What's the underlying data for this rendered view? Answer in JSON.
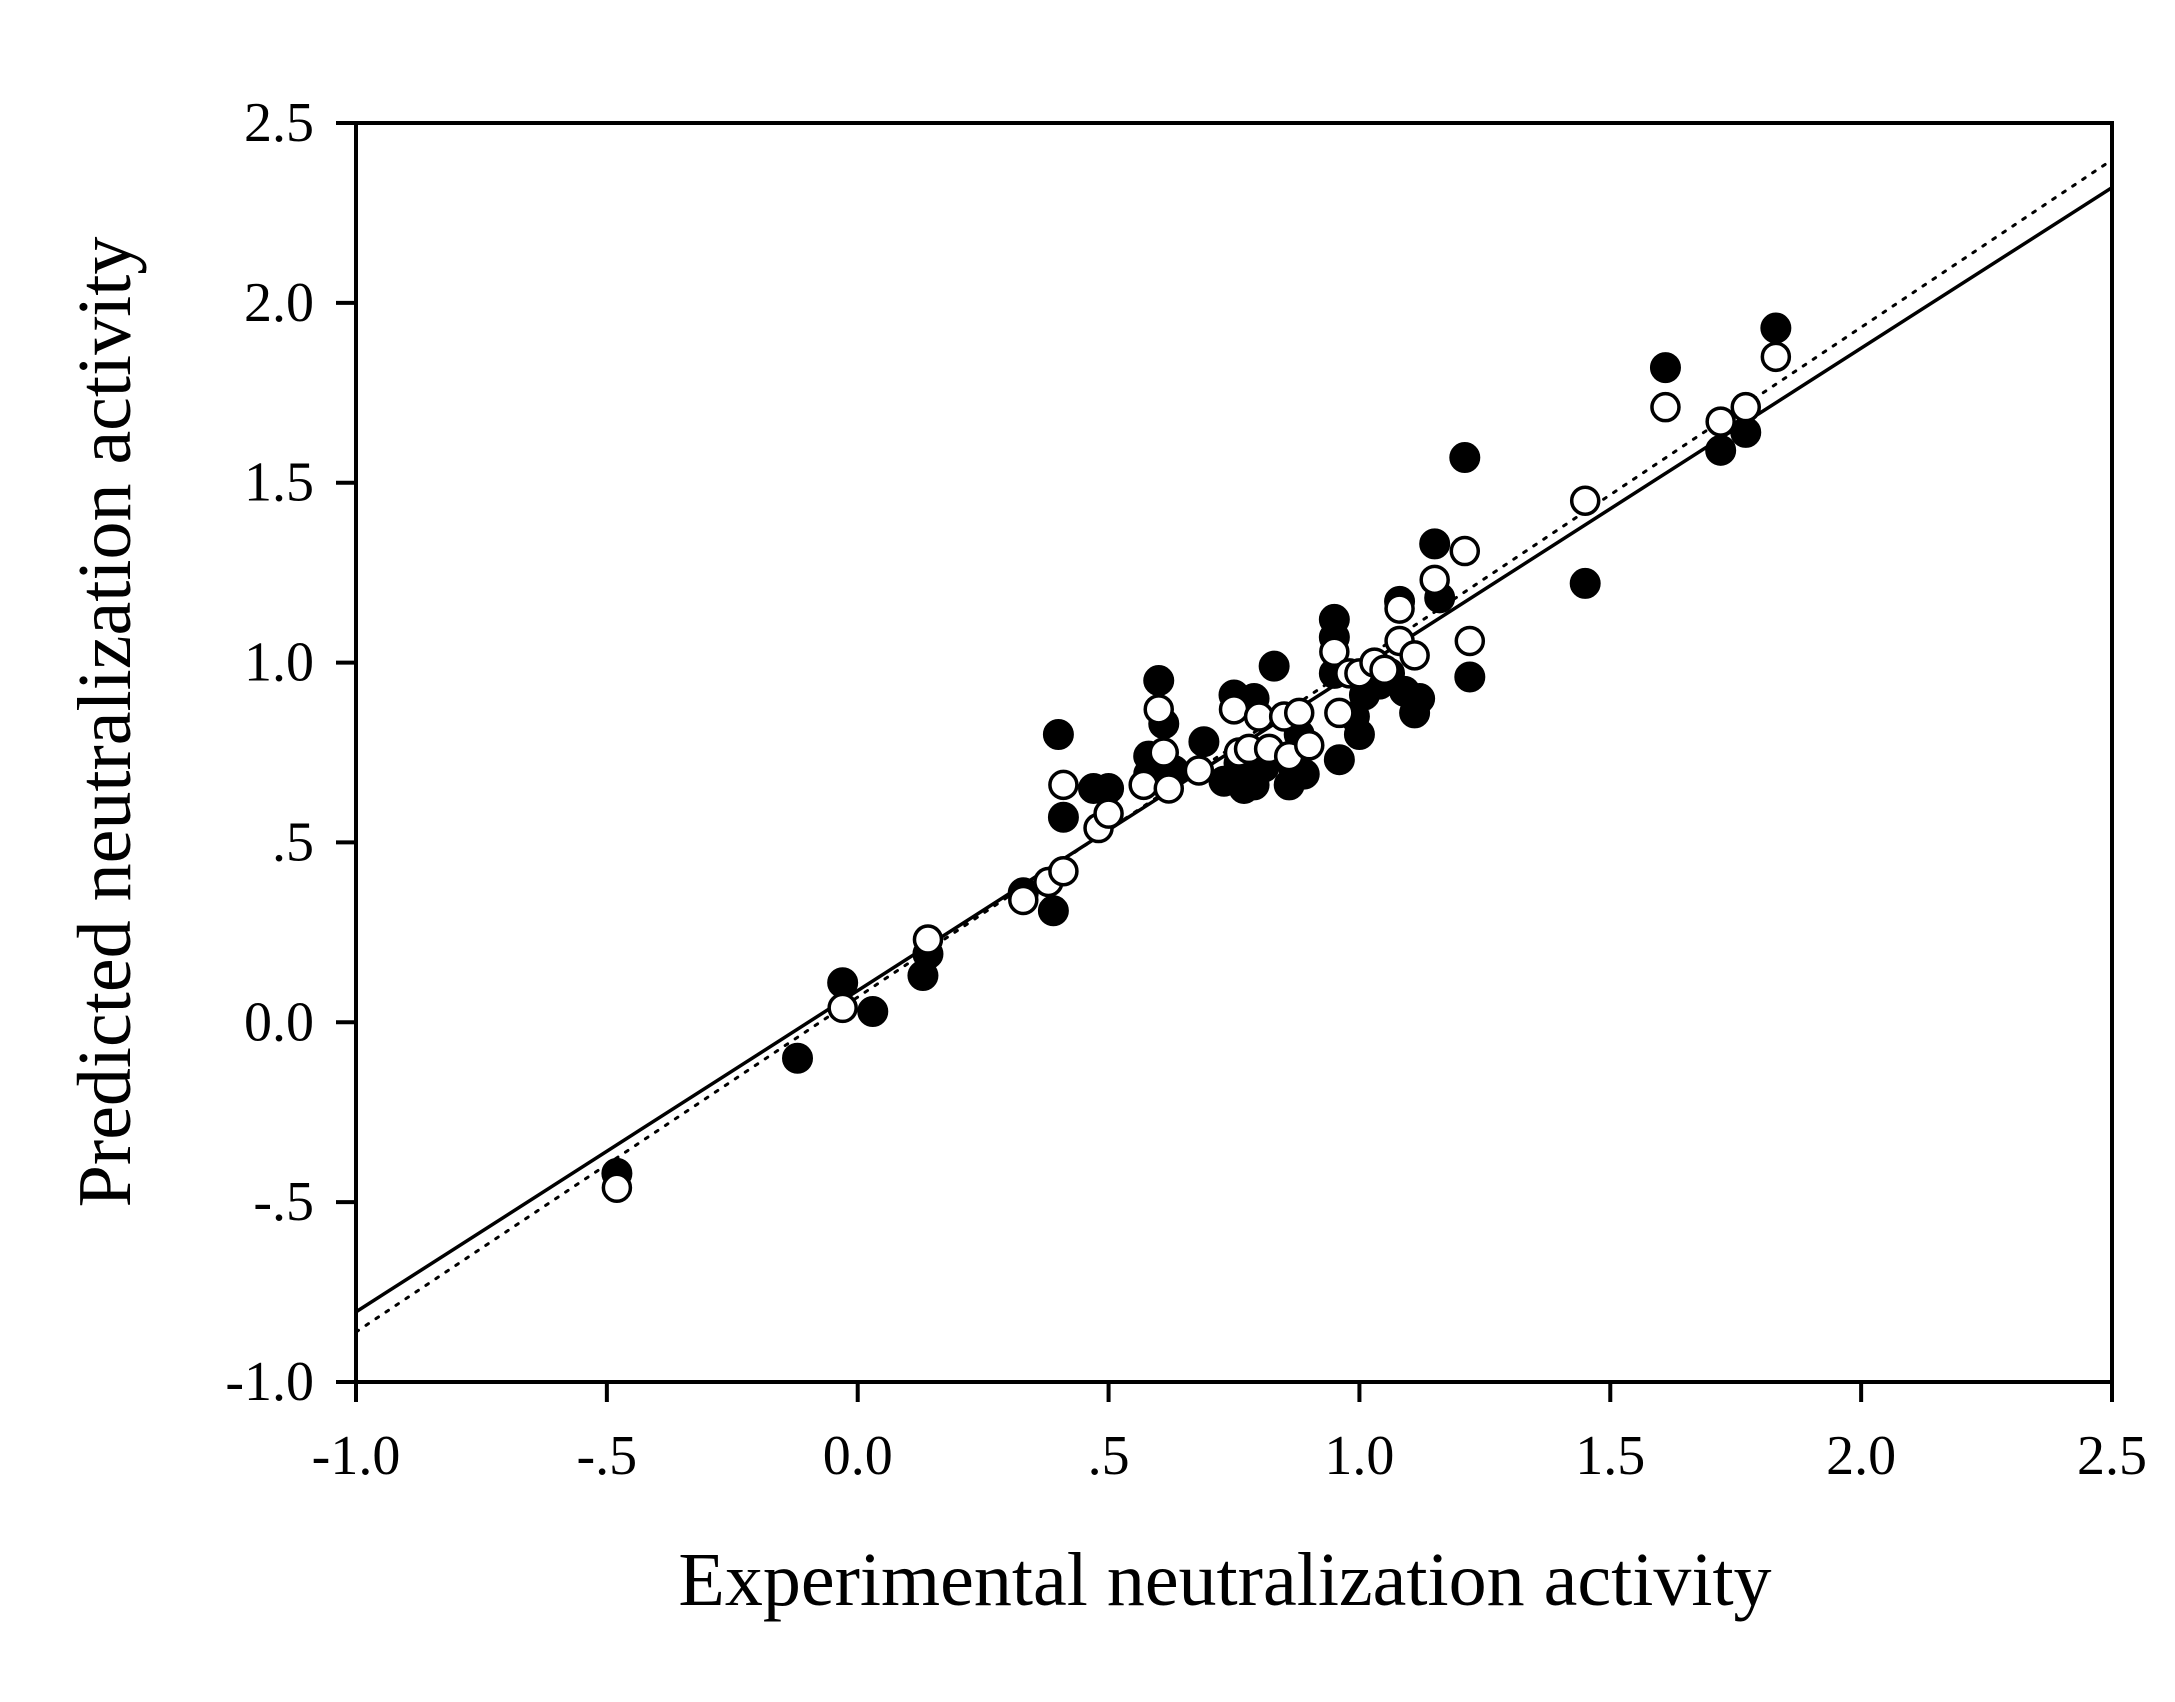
{
  "chart_data": {
    "type": "scatter",
    "title": "",
    "xlabel": "Experimental neutralization activity",
    "ylabel": "Predicted neutralization activity",
    "xlim": [
      -1.0,
      2.5
    ],
    "ylim": [
      -1.0,
      2.5
    ],
    "x_ticks": [
      -1.0,
      -0.5,
      0.0,
      0.5,
      1.0,
      1.5,
      2.0,
      2.5
    ],
    "x_tick_labels": [
      "-1.0",
      "-.5",
      "0.0",
      ".5",
      "1.0",
      "1.5",
      "2.0",
      "2.5"
    ],
    "y_ticks": [
      -1.0,
      -0.5,
      0.0,
      0.5,
      1.0,
      1.5,
      2.0,
      2.5
    ],
    "y_tick_labels": [
      "-1.0",
      "-.5",
      "0.0",
      ".5",
      "1.0",
      "1.5",
      "2.0",
      "2.5"
    ],
    "grid": false,
    "series": [
      {
        "name": "filled",
        "marker": "filled-circle",
        "color": "#000000",
        "points": [
          [
            -0.48,
            -0.42
          ],
          [
            -0.12,
            -0.1
          ],
          [
            -0.03,
            0.11
          ],
          [
            0.03,
            0.03
          ],
          [
            0.13,
            0.13
          ],
          [
            0.14,
            0.19
          ],
          [
            0.33,
            0.36
          ],
          [
            0.39,
            0.31
          ],
          [
            0.4,
            0.8
          ],
          [
            0.41,
            0.57
          ],
          [
            0.47,
            0.65
          ],
          [
            0.5,
            0.65
          ],
          [
            0.58,
            0.69
          ],
          [
            0.58,
            0.74
          ],
          [
            0.6,
            0.95
          ],
          [
            0.61,
            0.83
          ],
          [
            0.63,
            0.7
          ],
          [
            0.69,
            0.78
          ],
          [
            0.73,
            0.67
          ],
          [
            0.75,
            0.91
          ],
          [
            0.76,
            0.72
          ],
          [
            0.77,
            0.65
          ],
          [
            0.79,
            0.66
          ],
          [
            0.79,
            0.9
          ],
          [
            0.81,
            0.71
          ],
          [
            0.83,
            0.99
          ],
          [
            0.86,
            0.66
          ],
          [
            0.87,
            0.7
          ],
          [
            0.88,
            0.8
          ],
          [
            0.89,
            0.69
          ],
          [
            0.95,
            1.12
          ],
          [
            0.95,
            1.07
          ],
          [
            0.95,
            0.97
          ],
          [
            0.96,
            0.73
          ],
          [
            0.99,
            0.85
          ],
          [
            1.0,
            0.8
          ],
          [
            1.01,
            0.91
          ],
          [
            1.04,
            0.94
          ],
          [
            1.06,
            0.97
          ],
          [
            1.08,
            1.17
          ],
          [
            1.09,
            0.92
          ],
          [
            1.11,
            0.86
          ],
          [
            1.12,
            0.9
          ],
          [
            1.15,
            1.33
          ],
          [
            1.16,
            1.18
          ],
          [
            1.21,
            1.57
          ],
          [
            1.22,
            0.96
          ],
          [
            1.45,
            1.22
          ],
          [
            1.61,
            1.82
          ],
          [
            1.72,
            1.59
          ],
          [
            1.77,
            1.64
          ],
          [
            1.83,
            1.93
          ]
        ]
      },
      {
        "name": "open",
        "marker": "open-circle",
        "color": "#000000",
        "points": [
          [
            -0.48,
            -0.46
          ],
          [
            -0.03,
            0.04
          ],
          [
            0.14,
            0.23
          ],
          [
            0.33,
            0.34
          ],
          [
            0.38,
            0.39
          ],
          [
            0.41,
            0.42
          ],
          [
            0.41,
            0.66
          ],
          [
            0.48,
            0.54
          ],
          [
            0.5,
            0.58
          ],
          [
            0.57,
            0.66
          ],
          [
            0.6,
            0.87
          ],
          [
            0.61,
            0.75
          ],
          [
            0.62,
            0.65
          ],
          [
            0.68,
            0.7
          ],
          [
            0.75,
            0.87
          ],
          [
            0.76,
            0.75
          ],
          [
            0.78,
            0.76
          ],
          [
            0.8,
            0.85
          ],
          [
            0.82,
            0.76
          ],
          [
            0.85,
            0.85
          ],
          [
            0.86,
            0.74
          ],
          [
            0.88,
            0.86
          ],
          [
            0.9,
            0.77
          ],
          [
            0.95,
            1.03
          ],
          [
            0.96,
            0.86
          ],
          [
            0.98,
            0.97
          ],
          [
            1.0,
            0.97
          ],
          [
            1.03,
            1.0
          ],
          [
            1.05,
            0.98
          ],
          [
            1.08,
            1.06
          ],
          [
            1.08,
            1.15
          ],
          [
            1.11,
            1.02
          ],
          [
            1.15,
            1.23
          ],
          [
            1.21,
            1.31
          ],
          [
            1.22,
            1.06
          ],
          [
            1.45,
            1.45
          ],
          [
            1.61,
            1.71
          ],
          [
            1.72,
            1.67
          ],
          [
            1.77,
            1.71
          ],
          [
            1.83,
            1.85
          ]
        ]
      }
    ],
    "lines": [
      {
        "name": "solid-fit",
        "style": "solid",
        "slope": 0.893,
        "intercept": 0.088
      },
      {
        "name": "dotted-fit",
        "style": "dotted",
        "slope": 0.931,
        "intercept": 0.07
      }
    ]
  }
}
